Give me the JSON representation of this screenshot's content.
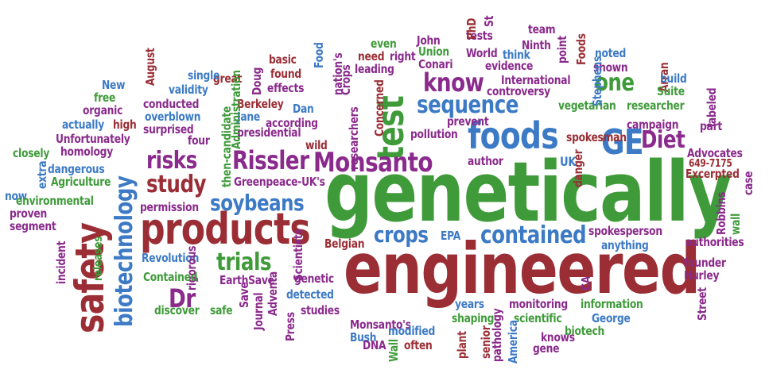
{
  "colors": {
    "green": "#3f9b3a",
    "blue": "#3c7ac5",
    "red": "#9b2e35",
    "purple": "#8a2a8c"
  },
  "words": [
    "genetically",
    "engineered",
    "products",
    "safety",
    "foods",
    "test",
    "GE",
    "Monsanto",
    "Rissler",
    "biotechnology",
    "sequence",
    "contained",
    "soybeans",
    "risks",
    "study",
    "know",
    "one",
    "Diet",
    "Dr",
    "trials",
    "crops",
    "UK",
    "Greenpeace-UK's",
    "Monsanto's",
    "Advocates",
    "Excerpted",
    "649-7175",
    "campaign",
    "spokesman",
    "vegetarian",
    "researcher",
    "controversy",
    "International",
    "noted",
    "shown",
    "Arran",
    "Suite",
    "build",
    "labeled",
    "part",
    "Stephens",
    "Foods",
    "point",
    "team",
    "Ninth",
    "tests",
    "St",
    "PhD",
    "World",
    "think",
    "evidence",
    "John",
    "Union",
    "Conari",
    "even",
    "need",
    "right",
    "leading",
    "prevent",
    "pollution",
    "author",
    "danger",
    "Concerned",
    "researchers",
    "nation's",
    "Crops",
    "Food",
    "basic",
    "found",
    "effects",
    "Doug",
    "great",
    "Berkeley",
    "Dan",
    "Jane",
    "according",
    "presidential",
    "Administration",
    "then-candidate",
    "wild",
    "August",
    "single",
    "validity",
    "conducted",
    "overblown",
    "surprised",
    "four",
    "New",
    "free",
    "organic",
    "actually",
    "high",
    "Unfortunately",
    "closely",
    "homology",
    "dangerous",
    "extra",
    "now",
    "Agriculture",
    "environmental",
    "proven",
    "segment",
    "incident",
    "releases",
    "permission",
    "Revolution",
    "rigorous",
    "Contained",
    "EarthSave",
    "discover",
    "safe",
    "Save",
    "Journal",
    "Adventa",
    "Press",
    "Scientists",
    "studies",
    "Belgian",
    "genetic",
    "detected",
    "EPA",
    "spokesperson",
    "anything",
    "authorities",
    "founder",
    "Hurley",
    "Street",
    "Robbins",
    "wall",
    "case",
    "CA",
    "monitoring",
    "information",
    "George",
    "biotech",
    "years",
    "shaping",
    "scientific",
    "knows",
    "pathology",
    "America",
    "gene",
    "senior",
    "plant",
    "modified",
    "Bush",
    "DNA",
    "often",
    "Wall"
  ]
}
